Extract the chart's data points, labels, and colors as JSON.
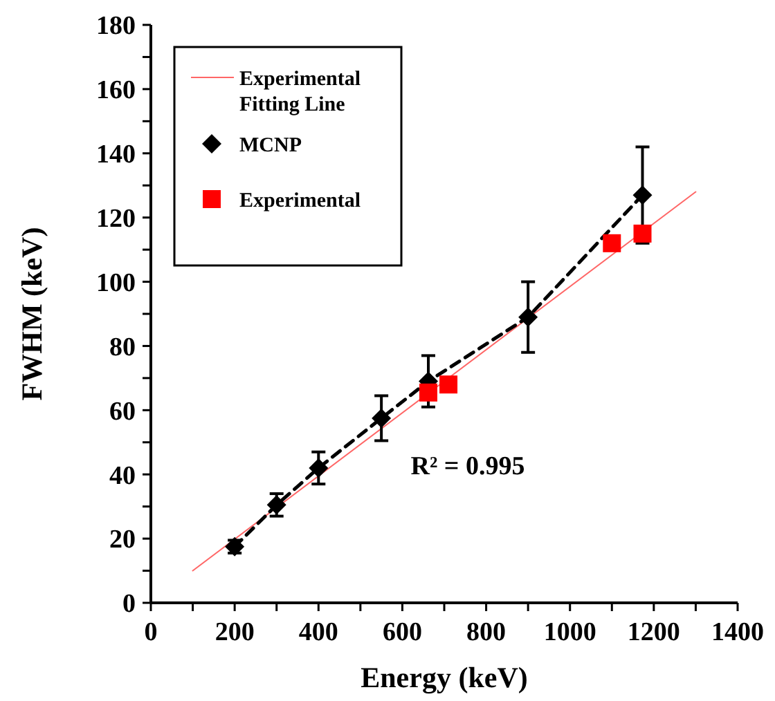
{
  "chart_data": {
    "type": "scatter",
    "xlabel": "Energy (keV)",
    "ylabel": "FWHM (keV)",
    "xlim": [
      0,
      1400
    ],
    "ylim": [
      0,
      180
    ],
    "xticks": [
      0,
      {
        "value": 100,
        "label": null
      },
      200,
      {
        "value": 300,
        "label": null
      },
      400,
      {
        "value": 500,
        "label": null
      },
      600,
      {
        "value": 700,
        "label": null
      },
      800,
      {
        "value": 900,
        "label": null
      },
      1000,
      {
        "value": 1100,
        "label": null
      },
      1200,
      {
        "value": 1300,
        "label": null
      },
      1400
    ],
    "yticks": [
      0,
      {
        "value": 10,
        "label": null
      },
      20,
      {
        "value": 30,
        "label": null
      },
      40,
      {
        "value": 50,
        "label": null
      },
      60,
      {
        "value": 70,
        "label": null
      },
      80,
      {
        "value": 90,
        "label": null
      },
      100,
      {
        "value": 110,
        "label": null
      },
      120,
      {
        "value": 130,
        "label": null
      },
      140,
      {
        "value": 150,
        "label": null
      },
      160,
      {
        "value": 170,
        "label": null
      },
      180
    ],
    "legend": "top left",
    "annotations": [
      "R² = 0.995"
    ],
    "series": [
      {
        "name": "Experimental Fitting Line",
        "type": "line",
        "color": "#ff6666",
        "line_style": "solid",
        "marker": "none",
        "x": [
          100,
          1300
        ],
        "values": [
          10,
          128
        ]
      },
      {
        "name": "MCNP",
        "type": "line",
        "color": "#000000",
        "line_style": "dashed",
        "marker": "diamond",
        "x": [
          200,
          300,
          400,
          550,
          662,
          900,
          1173
        ],
        "values": [
          17.5,
          30.5,
          42,
          57.5,
          69,
          89,
          127
        ],
        "errors": [
          2,
          3.5,
          5,
          7,
          8,
          11,
          15
        ]
      },
      {
        "name": "Experimental",
        "color": "#ff0000",
        "marker": "square",
        "x": [
          662,
          710,
          1100,
          1173
        ],
        "values": [
          65.5,
          68,
          112,
          115
        ]
      }
    ]
  }
}
